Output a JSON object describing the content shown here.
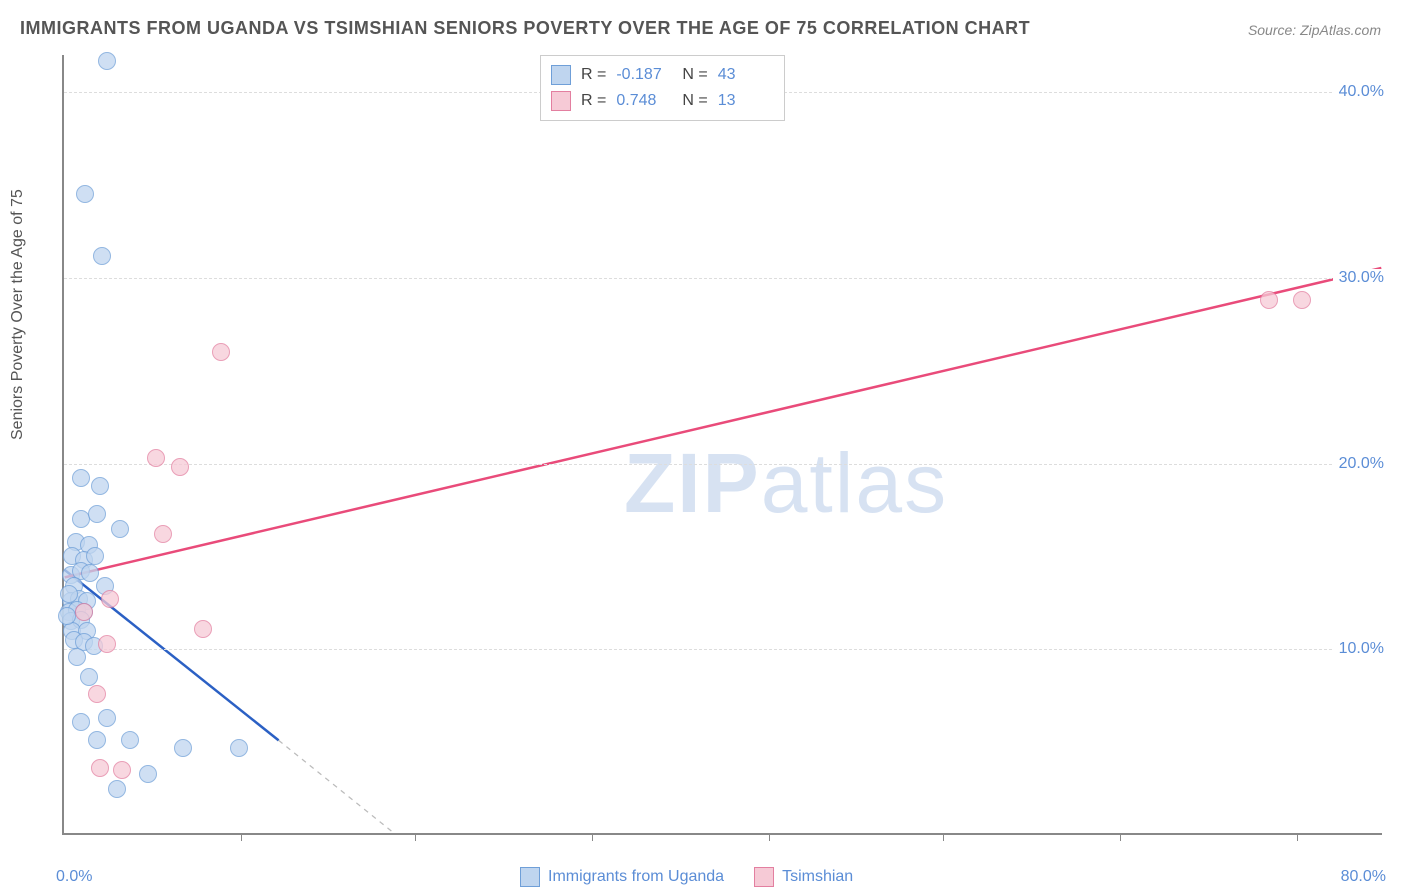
{
  "title": "IMMIGRANTS FROM UGANDA VS TSIMSHIAN SENIORS POVERTY OVER THE AGE OF 75 CORRELATION CHART",
  "source_label": "Source:",
  "source_value": "ZipAtlas.com",
  "y_axis_label": "Seniors Poverty Over the Age of 75",
  "watermark_bold": "ZIP",
  "watermark_light": "atlas",
  "chart": {
    "type": "scatter",
    "background_color": "#ffffff",
    "grid_color": "#dddddd",
    "axis_color": "#888888",
    "tick_label_color": "#5b8dd6",
    "xlim": [
      0,
      80
    ],
    "ylim": [
      0,
      42
    ],
    "y_ticks": [
      {
        "value": 10,
        "label": "10.0%"
      },
      {
        "value": 20,
        "label": "20.0%"
      },
      {
        "value": 30,
        "label": "30.0%"
      },
      {
        "value": 40,
        "label": "40.0%"
      }
    ],
    "x_tick_positions": [
      10.7,
      21.3,
      32,
      42.7,
      53.3,
      64,
      74.7
    ],
    "x_label_min": "0.0%",
    "x_label_max": "80.0%",
    "series": [
      {
        "name": "Immigrants from Uganda",
        "marker_fill": "#bfd5ef",
        "marker_stroke": "#6f9fd8",
        "line_color": "#2b60c4",
        "line_width": 2.5,
        "dash_color": "#bbbbbb",
        "R": "-0.187",
        "N": "43",
        "trend_start": {
          "x": 0,
          "y": 14.2
        },
        "trend_solid_end": {
          "x": 13,
          "y": 5
        },
        "trend_dash_end": {
          "x": 20,
          "y": 0
        },
        "points": [
          {
            "x": 2.6,
            "y": 41.7
          },
          {
            "x": 1.3,
            "y": 34.5
          },
          {
            "x": 2.3,
            "y": 31.2
          },
          {
            "x": 1.0,
            "y": 19.2
          },
          {
            "x": 2.2,
            "y": 18.8
          },
          {
            "x": 1.0,
            "y": 17.0
          },
          {
            "x": 2.0,
            "y": 17.3
          },
          {
            "x": 3.4,
            "y": 16.5
          },
          {
            "x": 0.7,
            "y": 15.8
          },
          {
            "x": 1.5,
            "y": 15.6
          },
          {
            "x": 0.5,
            "y": 15.0
          },
          {
            "x": 1.2,
            "y": 14.8
          },
          {
            "x": 1.9,
            "y": 15.0
          },
          {
            "x": 0.4,
            "y": 14.0
          },
          {
            "x": 1.0,
            "y": 14.2
          },
          {
            "x": 1.6,
            "y": 14.1
          },
          {
            "x": 0.6,
            "y": 13.4
          },
          {
            "x": 2.5,
            "y": 13.4
          },
          {
            "x": 0.4,
            "y": 12.6
          },
          {
            "x": 0.9,
            "y": 12.7
          },
          {
            "x": 1.4,
            "y": 12.6
          },
          {
            "x": 0.3,
            "y": 12.0
          },
          {
            "x": 0.8,
            "y": 12.1
          },
          {
            "x": 1.2,
            "y": 12.0
          },
          {
            "x": 0.4,
            "y": 11.5
          },
          {
            "x": 1.0,
            "y": 11.6
          },
          {
            "x": 0.5,
            "y": 11.0
          },
          {
            "x": 1.4,
            "y": 11.0
          },
          {
            "x": 0.6,
            "y": 10.5
          },
          {
            "x": 1.2,
            "y": 10.4
          },
          {
            "x": 1.8,
            "y": 10.2
          },
          {
            "x": 0.8,
            "y": 9.6
          },
          {
            "x": 1.5,
            "y": 8.5
          },
          {
            "x": 2.6,
            "y": 6.3
          },
          {
            "x": 1.0,
            "y": 6.1
          },
          {
            "x": 2.0,
            "y": 5.1
          },
          {
            "x": 4.0,
            "y": 5.1
          },
          {
            "x": 7.2,
            "y": 4.7
          },
          {
            "x": 10.6,
            "y": 4.7
          },
          {
            "x": 5.1,
            "y": 3.3
          },
          {
            "x": 3.2,
            "y": 2.5
          },
          {
            "x": 0.3,
            "y": 13.0
          },
          {
            "x": 0.2,
            "y": 11.8
          }
        ]
      },
      {
        "name": "Tsimshian",
        "marker_fill": "#f6cad6",
        "marker_stroke": "#e37fa0",
        "line_color": "#e94b7a",
        "line_width": 2.5,
        "R": "0.748",
        "N": "13",
        "trend_start": {
          "x": 0,
          "y": 13.8
        },
        "trend_solid_end": {
          "x": 80,
          "y": 30.5
        },
        "points": [
          {
            "x": 9.5,
            "y": 26.0
          },
          {
            "x": 5.6,
            "y": 20.3
          },
          {
            "x": 7.0,
            "y": 19.8
          },
          {
            "x": 6.0,
            "y": 16.2
          },
          {
            "x": 2.8,
            "y": 12.7
          },
          {
            "x": 1.2,
            "y": 12.0
          },
          {
            "x": 8.4,
            "y": 11.1
          },
          {
            "x": 2.6,
            "y": 10.3
          },
          {
            "x": 2.0,
            "y": 7.6
          },
          {
            "x": 2.2,
            "y": 3.6
          },
          {
            "x": 3.5,
            "y": 3.5
          },
          {
            "x": 73.0,
            "y": 28.8
          },
          {
            "x": 75.0,
            "y": 28.8
          }
        ]
      }
    ]
  },
  "bottom_legend": [
    {
      "label": "Immigrants from Uganda",
      "fill": "#bfd5ef",
      "stroke": "#6f9fd8"
    },
    {
      "label": "Tsimshian",
      "fill": "#f6cad6",
      "stroke": "#e37fa0"
    }
  ]
}
